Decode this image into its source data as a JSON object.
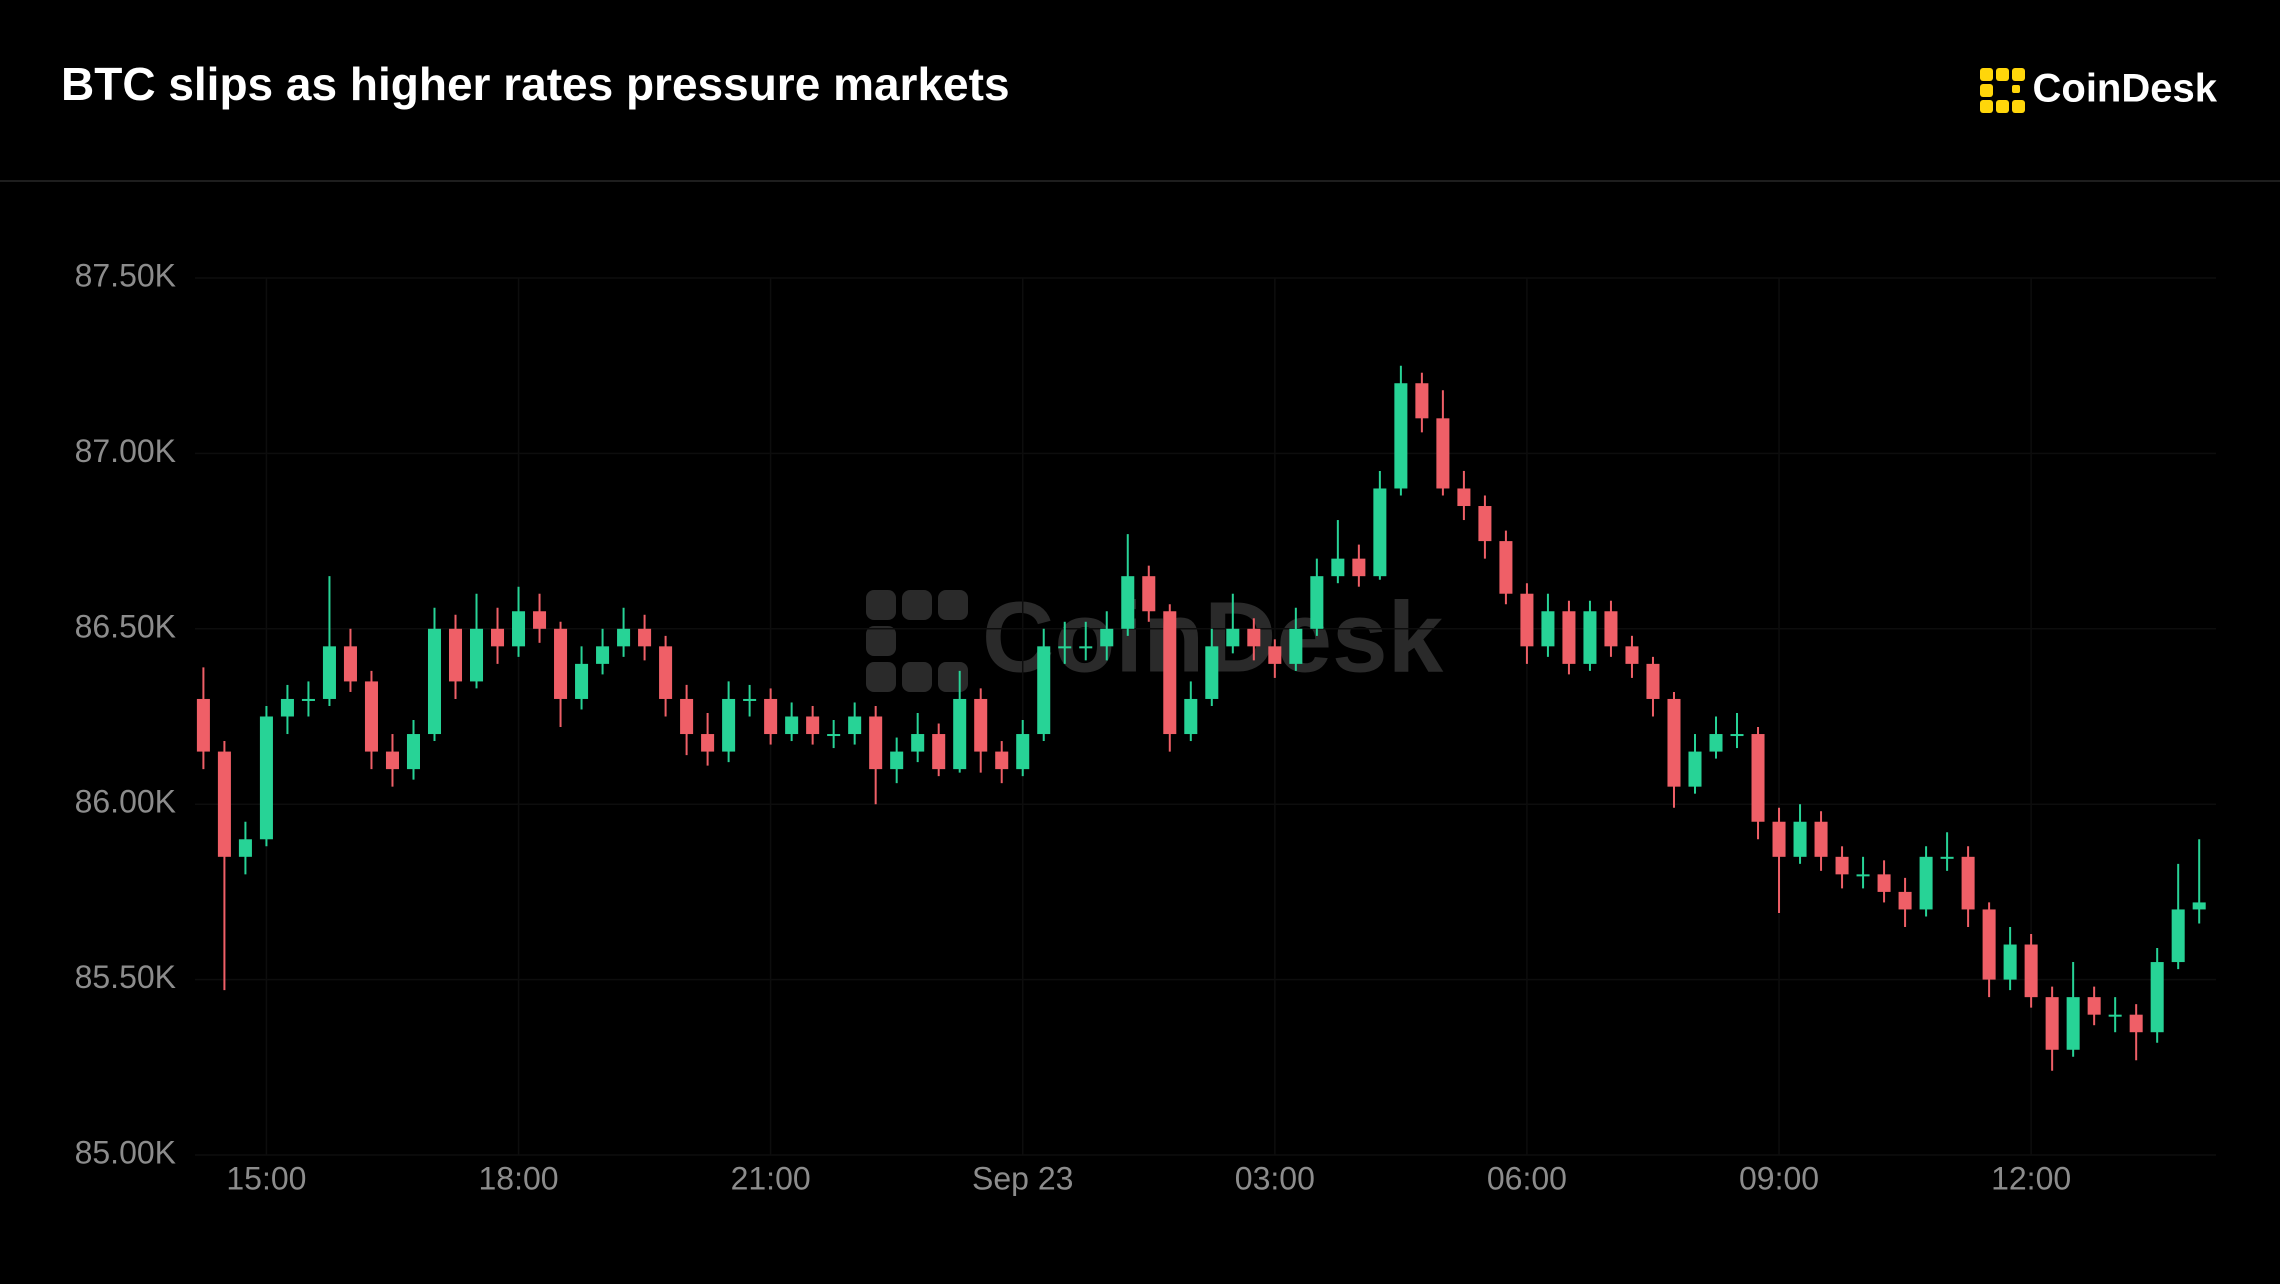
{
  "logo": "CoinDesk",
  "watermark": "CoinDesk",
  "chart_data": {
    "type": "candlestick",
    "title": "BTC slips as higher rates pressure markets",
    "up_color": "#27d396",
    "down_color": "#ef5f67",
    "grid": true,
    "xlim": [
      14.15,
      38.2
    ],
    "ylim": [
      85000,
      87500
    ],
    "xticks": [
      {
        "value": 15,
        "label": "15:00"
      },
      {
        "value": 18,
        "label": "18:00"
      },
      {
        "value": 21,
        "label": "21:00"
      },
      {
        "value": 24,
        "label": "Sep 23"
      },
      {
        "value": 27,
        "label": "03:00"
      },
      {
        "value": 30,
        "label": "06:00"
      },
      {
        "value": 33,
        "label": "09:00"
      },
      {
        "value": 36,
        "label": "12:00"
      }
    ],
    "yticks": [
      {
        "value": 85000,
        "label": "85.00K"
      },
      {
        "value": 85500,
        "label": "85.50K"
      },
      {
        "value": 86000,
        "label": "86.00K"
      },
      {
        "value": 86500,
        "label": "86.50K"
      },
      {
        "value": 87000,
        "label": "87.00K"
      },
      {
        "value": 87500,
        "label": "87.50K"
      }
    ],
    "x": [
      14.25,
      14.5,
      14.75,
      15,
      15.25,
      15.5,
      15.75,
      16,
      16.25,
      16.5,
      16.75,
      17,
      17.25,
      17.5,
      17.75,
      18,
      18.25,
      18.5,
      18.75,
      19,
      19.25,
      19.5,
      19.75,
      20,
      20.25,
      20.5,
      20.75,
      21,
      21.25,
      21.5,
      21.75,
      22,
      22.25,
      22.5,
      22.75,
      23,
      23.25,
      23.5,
      23.75,
      24,
      24.25,
      24.5,
      24.75,
      25,
      25.25,
      25.5,
      25.75,
      26,
      26.25,
      26.5,
      26.75,
      27,
      27.25,
      27.5,
      27.75,
      28,
      28.25,
      28.5,
      28.75,
      29,
      29.25,
      29.5,
      29.75,
      30,
      30.25,
      30.5,
      30.75,
      31,
      31.25,
      31.5,
      31.75,
      32,
      32.25,
      32.5,
      32.75,
      33,
      33.25,
      33.5,
      33.75,
      34,
      34.25,
      34.5,
      34.75,
      35,
      35.25,
      35.5,
      35.75,
      36,
      36.25,
      36.5,
      36.75,
      37,
      37.25,
      37.5,
      37.75,
      38
    ],
    "open": [
      86300,
      86150,
      85850,
      85900,
      86250,
      86300,
      86300,
      86450,
      86350,
      86150,
      86100,
      86200,
      86500,
      86350,
      86500,
      86450,
      86550,
      86500,
      86300,
      86400,
      86450,
      86500,
      86450,
      86300,
      86200,
      86150,
      86300,
      86300,
      86200,
      86250,
      86200,
      86200,
      86250,
      86100,
      86150,
      86200,
      86100,
      86300,
      86150,
      86100,
      86200,
      86450,
      86450,
      86450,
      86500,
      86650,
      86550,
      86200,
      86300,
      86450,
      86500,
      86450,
      86400,
      86500,
      86650,
      86700,
      86650,
      86900,
      87200,
      87100,
      86900,
      86850,
      86750,
      86600,
      86450,
      86550,
      86400,
      86550,
      86450,
      86400,
      86300,
      86050,
      86150,
      86200,
      86200,
      85950,
      85850,
      85950,
      85850,
      85800,
      85800,
      85750,
      85700,
      85850,
      85850,
      85700,
      85500,
      85600,
      85450,
      85300,
      85450,
      85400,
      85400,
      85350,
      85550,
      85700
    ],
    "high": [
      86390,
      86180,
      85950,
      86280,
      86340,
      86350,
      86650,
      86500,
      86380,
      86200,
      86240,
      86560,
      86540,
      86600,
      86560,
      86620,
      86600,
      86520,
      86450,
      86500,
      86560,
      86540,
      86480,
      86340,
      86260,
      86350,
      86340,
      86330,
      86290,
      86280,
      86240,
      86290,
      86280,
      86190,
      86260,
      86230,
      86380,
      86330,
      86180,
      86240,
      86500,
      86520,
      86520,
      86550,
      86770,
      86680,
      86570,
      86350,
      86500,
      86600,
      86530,
      86470,
      86560,
      86700,
      86810,
      86740,
      86950,
      87250,
      87230,
      87180,
      86950,
      86880,
      86780,
      86630,
      86600,
      86580,
      86580,
      86580,
      86480,
      86420,
      86320,
      86200,
      86250,
      86260,
      86220,
      85990,
      86000,
      85980,
      85880,
      85850,
      85840,
      85790,
      85880,
      85920,
      85880,
      85720,
      85650,
      85630,
      85480,
      85550,
      85480,
      85450,
      85430,
      85590,
      85830,
      85900
    ],
    "low": [
      86100,
      85470,
      85800,
      85880,
      86200,
      86250,
      86280,
      86320,
      86100,
      86050,
      86070,
      86180,
      86300,
      86330,
      86400,
      86420,
      86460,
      86220,
      86270,
      86370,
      86420,
      86410,
      86250,
      86140,
      86110,
      86120,
      86250,
      86170,
      86180,
      86170,
      86160,
      86170,
      86000,
      86060,
      86120,
      86080,
      86090,
      86090,
      86060,
      86080,
      86180,
      86400,
      86410,
      86410,
      86480,
      86520,
      86150,
      86180,
      86280,
      86430,
      86410,
      86360,
      86380,
      86480,
      86630,
      86620,
      86640,
      86880,
      87060,
      86880,
      86810,
      86700,
      86570,
      86400,
      86420,
      86370,
      86380,
      86420,
      86360,
      86250,
      85990,
      86030,
      86130,
      86160,
      85900,
      85690,
      85830,
      85810,
      85760,
      85760,
      85720,
      85650,
      85680,
      85810,
      85650,
      85450,
      85470,
      85420,
      85240,
      85280,
      85370,
      85350,
      85270,
      85320,
      85530,
      85660
    ],
    "close": [
      86150,
      85850,
      85900,
      86250,
      86300,
      86300,
      86450,
      86350,
      86150,
      86100,
      86200,
      86500,
      86350,
      86500,
      86450,
      86550,
      86500,
      86300,
      86400,
      86450,
      86500,
      86450,
      86300,
      86200,
      86150,
      86300,
      86300,
      86200,
      86250,
      86200,
      86200,
      86250,
      86100,
      86150,
      86200,
      86100,
      86300,
      86150,
      86100,
      86200,
      86450,
      86450,
      86450,
      86500,
      86650,
      86550,
      86200,
      86300,
      86450,
      86500,
      86450,
      86400,
      86500,
      86650,
      86700,
      86650,
      86900,
      87200,
      87100,
      86900,
      86850,
      86750,
      86600,
      86450,
      86550,
      86400,
      86550,
      86450,
      86400,
      86300,
      86050,
      86150,
      86200,
      86200,
      85950,
      85850,
      85950,
      85850,
      85800,
      85800,
      85750,
      85700,
      85850,
      85850,
      85700,
      85500,
      85600,
      85450,
      85300,
      85450,
      85400,
      85400,
      85350,
      85550,
      85700,
      85720
    ]
  }
}
